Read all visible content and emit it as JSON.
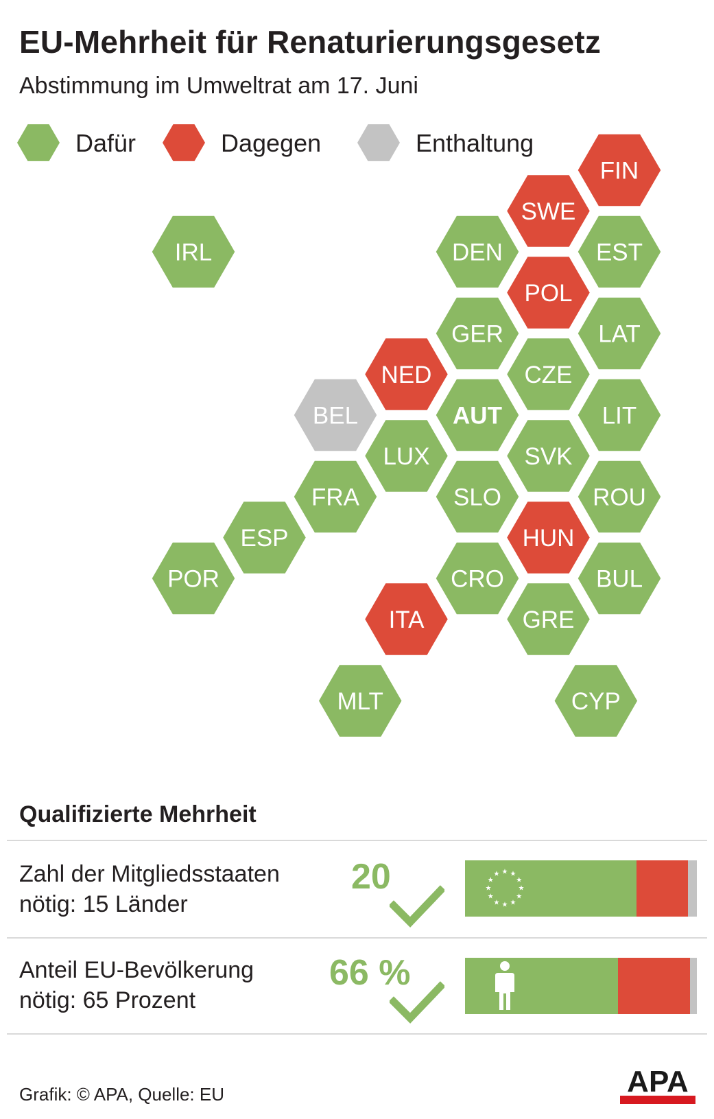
{
  "header": {
    "title": "EU-Mehrheit für Renaturierungsgesetz",
    "subtitle": "Abstimmung im Umweltrat am 17. Juni"
  },
  "colors": {
    "for": "#8bb963",
    "against": "#dd4b39",
    "abstain": "#c3c3c3",
    "text": "#231f20",
    "rule": "#d9d9d9"
  },
  "legend": [
    {
      "label": "Dafür",
      "status": "for"
    },
    {
      "label": "Dagegen",
      "status": "against"
    },
    {
      "label": "Enthaltung",
      "status": "abstain"
    }
  ],
  "countries": [
    {
      "code": "FIN",
      "status": "against",
      "col": 7,
      "row": 0
    },
    {
      "code": "SWE",
      "status": "against",
      "col": 6,
      "row": 0.5
    },
    {
      "code": "IRL",
      "status": "for",
      "col": 1,
      "row": 1
    },
    {
      "code": "DEN",
      "status": "for",
      "col": 5,
      "row": 1
    },
    {
      "code": "EST",
      "status": "for",
      "col": 7,
      "row": 1
    },
    {
      "code": "POL",
      "status": "against",
      "col": 6,
      "row": 1.5
    },
    {
      "code": "GER",
      "status": "for",
      "col": 5,
      "row": 2
    },
    {
      "code": "LAT",
      "status": "for",
      "col": 7,
      "row": 2
    },
    {
      "code": "NED",
      "status": "against",
      "col": 4,
      "row": 2.5
    },
    {
      "code": "CZE",
      "status": "for",
      "col": 6,
      "row": 2.5
    },
    {
      "code": "BEL",
      "status": "abstain",
      "col": 3,
      "row": 3
    },
    {
      "code": "AUT",
      "status": "for",
      "col": 5,
      "row": 3,
      "bold": true
    },
    {
      "code": "LIT",
      "status": "for",
      "col": 7,
      "row": 3
    },
    {
      "code": "LUX",
      "status": "for",
      "col": 4,
      "row": 3.5
    },
    {
      "code": "SVK",
      "status": "for",
      "col": 6,
      "row": 3.5
    },
    {
      "code": "FRA",
      "status": "for",
      "col": 3,
      "row": 4
    },
    {
      "code": "SLO",
      "status": "for",
      "col": 5,
      "row": 4
    },
    {
      "code": "ROU",
      "status": "for",
      "col": 7,
      "row": 4
    },
    {
      "code": "ESP",
      "status": "for",
      "col": 2,
      "row": 4.5
    },
    {
      "code": "HUN",
      "status": "against",
      "col": 6,
      "row": 4.5
    },
    {
      "code": "POR",
      "status": "for",
      "col": 1,
      "row": 5
    },
    {
      "code": "CRO",
      "status": "for",
      "col": 5,
      "row": 5
    },
    {
      "code": "BUL",
      "status": "for",
      "col": 7,
      "row": 5
    },
    {
      "code": "ITA",
      "status": "against",
      "col": 4,
      "row": 5.5
    },
    {
      "code": "GRE",
      "status": "for",
      "col": 6,
      "row": 5.5
    },
    {
      "code": "MLT",
      "status": "for",
      "col": 3.35,
      "row": 6.5
    },
    {
      "code": "CYP",
      "status": "for",
      "col": 6.67,
      "row": 6.5
    }
  ],
  "qualified_majority": {
    "title": "Qualifizierte Mehrheit",
    "rows": [
      {
        "label_line1": "Zahl der Mitgliedsstaaten",
        "label_line2": "nötig: 15 Länder",
        "value": "20",
        "icon": "eu-stars-icon",
        "shares": {
          "for": 20,
          "against": 6,
          "abstain": 1
        }
      },
      {
        "label_line1": "Anteil EU-Bevölkerung",
        "label_line2": "nötig: 65 Prozent",
        "value": "66 %",
        "icon": "person-icon",
        "shares": {
          "for": 66,
          "against": 31,
          "abstain": 3
        }
      }
    ]
  },
  "footer": {
    "credit": "Grafik: © APA, Quelle: EU",
    "logo_text": "APA"
  }
}
